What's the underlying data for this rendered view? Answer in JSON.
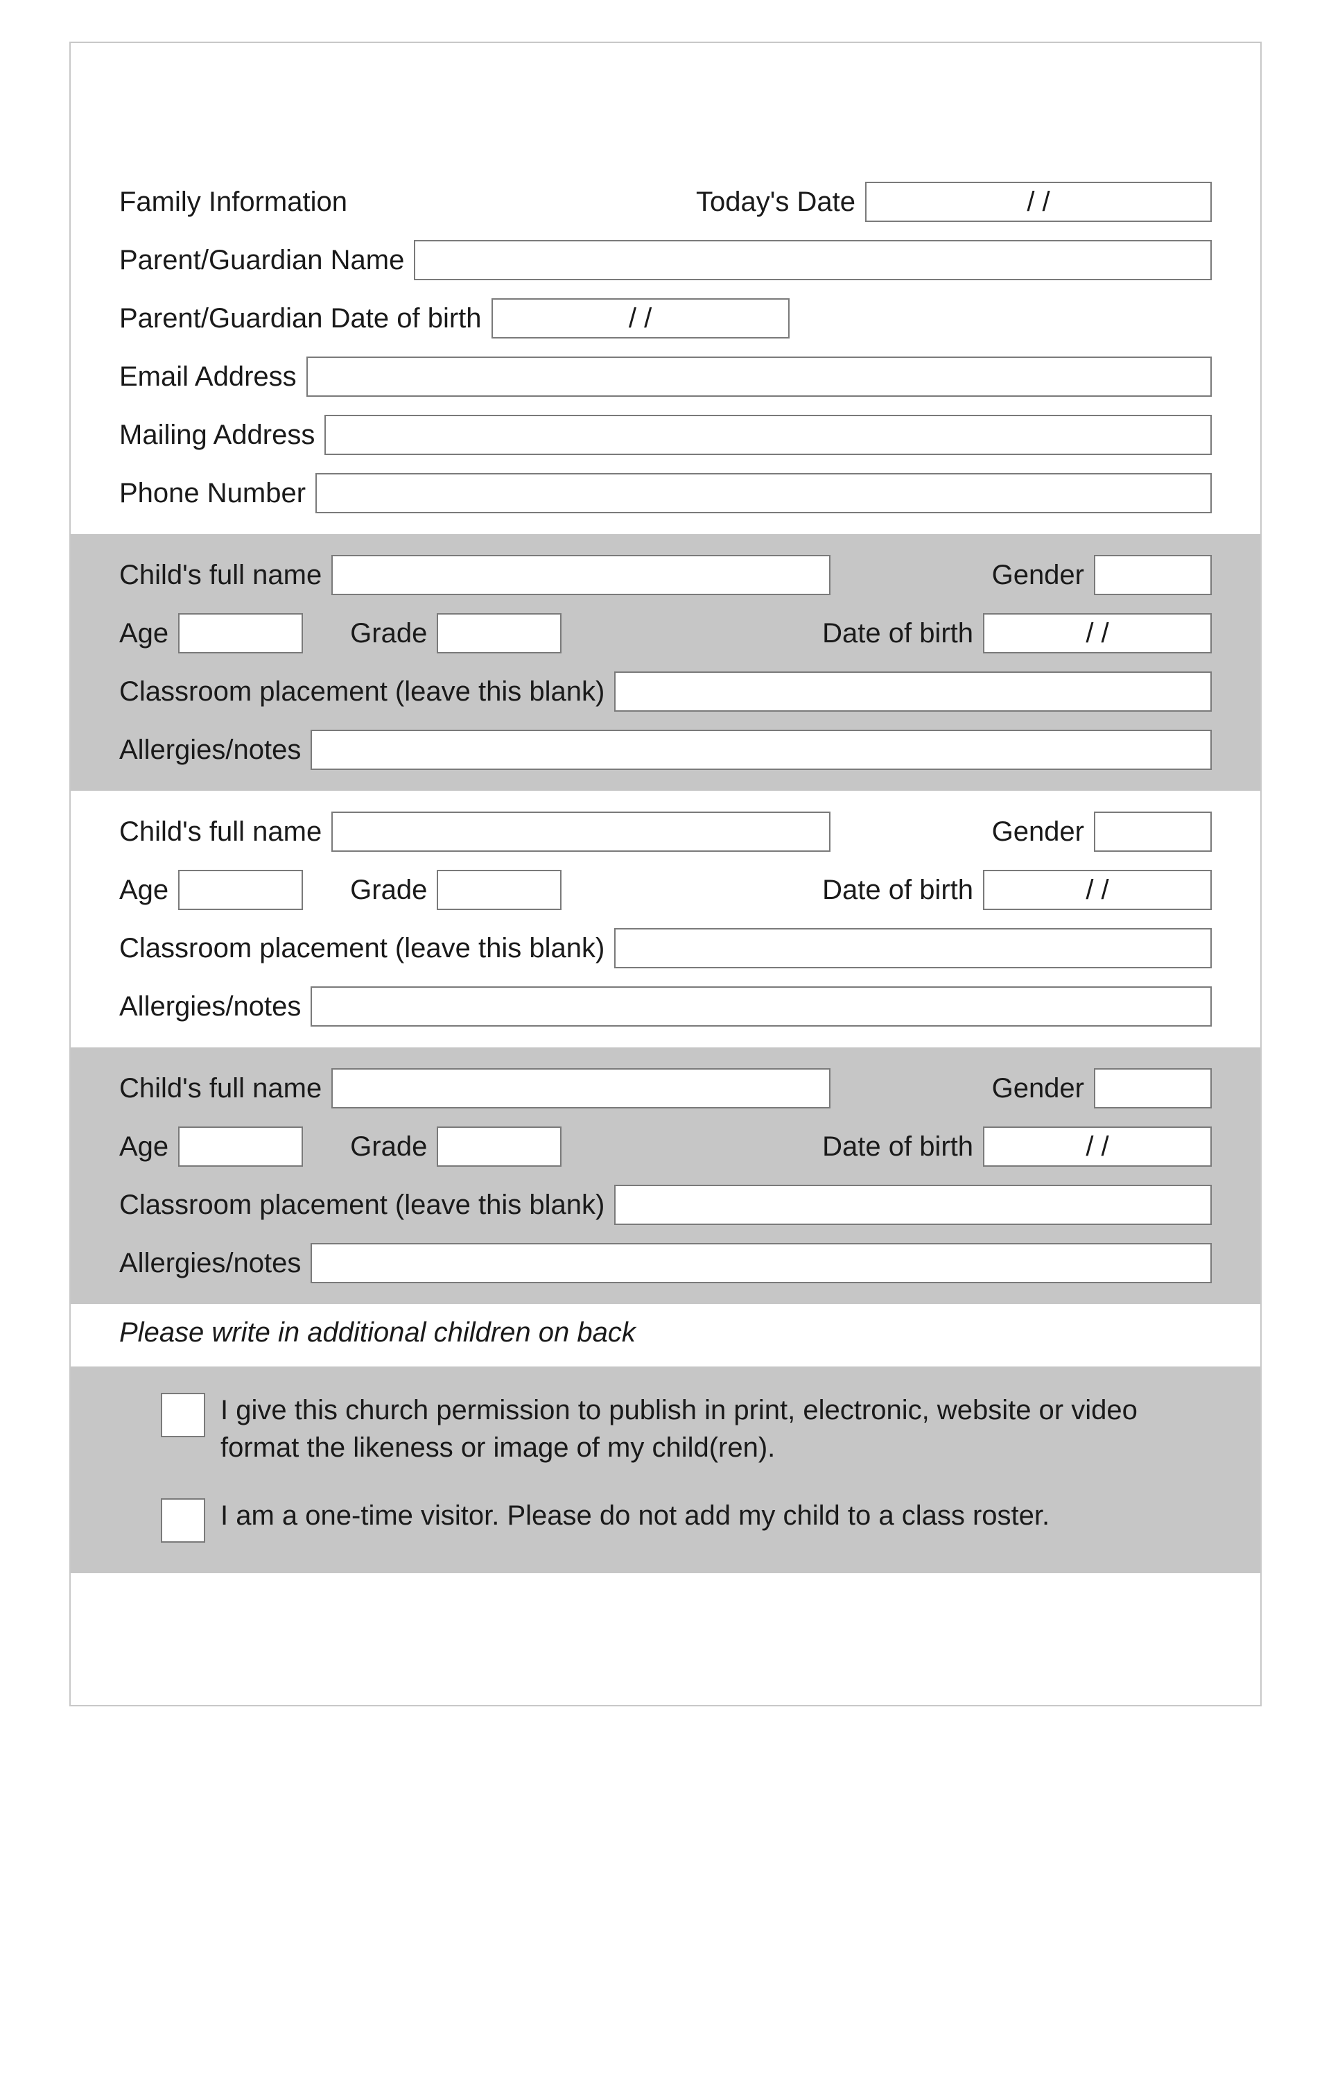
{
  "colors": {
    "page_bg": "#ffffff",
    "card_border": "#c8c8c8",
    "field_border": "#7a7a7a",
    "shaded_bg": "#c6c6c6",
    "text": "#1a1a1a"
  },
  "typography": {
    "base_fontsize_pt": 30,
    "italic_for_note": true
  },
  "date_placeholder": "/        /",
  "family": {
    "heading": "Family Information",
    "today_label": "Today's Date",
    "parent_name_label": "Parent/Guardian Name",
    "parent_dob_label": "Parent/Guardian Date of birth",
    "email_label": "Email Address",
    "mailing_label": "Mailing Address",
    "phone_label": "Phone Number"
  },
  "child_labels": {
    "full_name": "Child's full name",
    "gender": "Gender",
    "age": "Age",
    "grade": "Grade",
    "dob": "Date of birth",
    "classroom": "Classroom placement (leave this blank)",
    "allergies": "Allergies/notes"
  },
  "children_count": 3,
  "note": "Please write in additional children on back",
  "consents": {
    "publish": "I give this church permission to publish in print, electronic, website or video format the likeness or image of my child(ren).",
    "visitor": "I am a one-time visitor. Please do not add my child to a class roster."
  }
}
